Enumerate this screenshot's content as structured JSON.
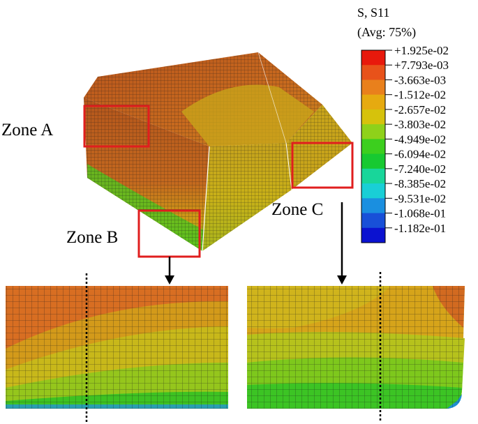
{
  "legend": {
    "title_line1": "S, S11",
    "title_line2": "(Avg: 75%)",
    "levels": [
      {
        "value": "+1.925e-02",
        "color": "#e8190c"
      },
      {
        "value": "+7.793e-03",
        "color": "#e8521a"
      },
      {
        "value": "-3.663e-03",
        "color": "#e9801c"
      },
      {
        "value": "-1.512e-02",
        "color": "#e6aa10"
      },
      {
        "value": "-2.657e-02",
        "color": "#d6c20c"
      },
      {
        "value": "-3.803e-02",
        "color": "#8fd11a"
      },
      {
        "value": "-4.949e-02",
        "color": "#3ccf1e"
      },
      {
        "value": "-6.094e-02",
        "color": "#17c931"
      },
      {
        "value": "-7.240e-02",
        "color": "#18d69a"
      },
      {
        "value": "-8.385e-02",
        "color": "#19cfd6"
      },
      {
        "value": "-9.531e-02",
        "color": "#1a8fe0"
      },
      {
        "value": "-1.068e-01",
        "color": "#1850d8"
      },
      {
        "value": "-1.182e-01",
        "color": "#0b12d0"
      }
    ]
  },
  "zones": {
    "a": "Zone A",
    "b": "Zone B",
    "c": "Zone C"
  },
  "colors": {
    "highlight_box": "#e01e1e",
    "mesh_line": "#1a1a1a",
    "arrow": "#000000"
  }
}
